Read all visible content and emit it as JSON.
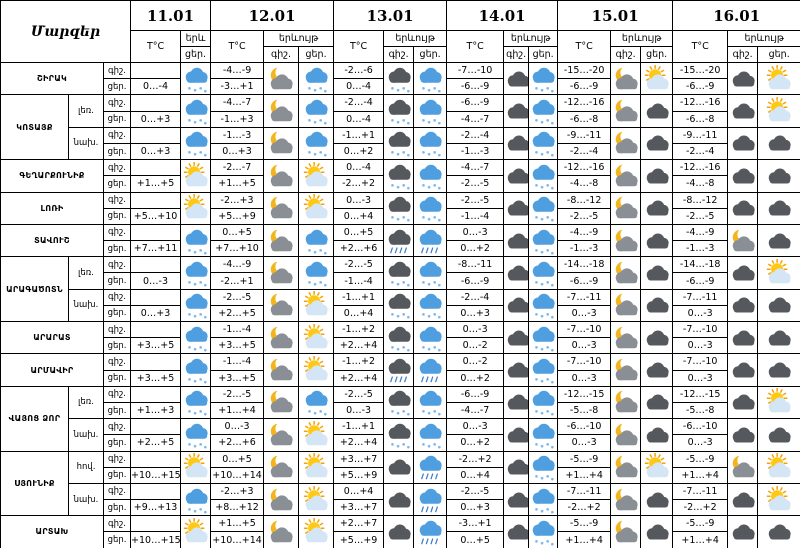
{
  "header": {
    "title": "Մարզեր",
    "temp_label": "T°C",
    "phenomenon_label": "երևույթ",
    "phenomenon_label_short": "երև",
    "night": "գիշ.",
    "day": "ցեր."
  },
  "dates": [
    "11.01",
    "12.01",
    "13.01",
    "14.01",
    "15.01",
    "16.01"
  ],
  "regions": [
    {
      "name": "ՇԻՐԱԿ",
      "rows": [
        {
          "temps": [
            [
              "0…-4"
            ],
            [
              "-4…-9",
              "-3…+1"
            ],
            [
              "-2…-6",
              "0…-4"
            ],
            [
              "-7…-10",
              "-6…-9"
            ],
            [
              "-15…-20",
              "-6…-9"
            ],
            [
              "-15…-20",
              "-6…-9"
            ]
          ]
        }
      ]
    },
    {
      "name": "ԿՈՏԱՅՔ",
      "rows": [
        {
          "zone": "լեռ.",
          "temps": [
            [
              "0…+3"
            ],
            [
              "-4…-7",
              "-1…+3"
            ],
            [
              "-2…-4",
              "0…-4"
            ],
            [
              "-6…-9",
              "-4…-7"
            ],
            [
              "-12…-16",
              "-6…-8"
            ],
            [
              "-12…-16",
              "-6…-8"
            ]
          ]
        },
        {
          "zone": "նախ.",
          "temps": [
            [
              "0…+3"
            ],
            [
              "-1…-3",
              "0…+3"
            ],
            [
              "-1…+1",
              "0…+2"
            ],
            [
              "-2…-4",
              "-1…-3"
            ],
            [
              "-9…-11",
              "-2…-4"
            ],
            [
              "-9…-11",
              "-2…-4"
            ]
          ]
        }
      ]
    },
    {
      "name": "ԳԵՂԱՐՔՈՒՆԻՔ",
      "rows": [
        {
          "temps": [
            [
              "+1…+5"
            ],
            [
              "-2…-7",
              "+1…+5"
            ],
            [
              "0…-4",
              "-2…+2"
            ],
            [
              "-4…-7",
              "-2…-5"
            ],
            [
              "-12…-16",
              "-4…-8"
            ],
            [
              "-12…-16",
              "-4…-8"
            ]
          ]
        }
      ]
    },
    {
      "name": "ԼՈՌԻ",
      "rows": [
        {
          "temps": [
            [
              "+5…+10"
            ],
            [
              "-2…+3",
              "+5…+9"
            ],
            [
              "0…-3",
              "0…+4"
            ],
            [
              "-2…-5",
              "-1…-4"
            ],
            [
              "-8…-12",
              "-2…-5"
            ],
            [
              "-8…-12",
              "-2…-5"
            ]
          ]
        }
      ]
    },
    {
      "name": "ՏԱՎՈՒՇ",
      "rows": [
        {
          "temps": [
            [
              "+7…+11"
            ],
            [
              "0…+5",
              "+7…+10"
            ],
            [
              "0…+5",
              "+2…+6"
            ],
            [
              "0…-3",
              "0…+2"
            ],
            [
              "-4…-9",
              "-1…-3"
            ],
            [
              "-4…-9",
              "-1…-3"
            ]
          ]
        }
      ]
    },
    {
      "name": "ԱՐԱԳԱԾՈՏՆ",
      "rows": [
        {
          "zone": "լեռ.",
          "temps": [
            [
              "0…-3"
            ],
            [
              "-4…-9",
              "-2…+1"
            ],
            [
              "-2…-5",
              "-1…-4"
            ],
            [
              "-8…-11",
              "-6…-9"
            ],
            [
              "-14…-18",
              "-6…-9"
            ],
            [
              "-14…-18",
              "-6…-9"
            ]
          ]
        },
        {
          "zone": "նախ.",
          "temps": [
            [
              "0…+3"
            ],
            [
              "-2…-5",
              "+2…+5"
            ],
            [
              "-1…+1",
              "0…+4"
            ],
            [
              "-2…-4",
              "0…+3"
            ],
            [
              "-7…-11",
              "0…-3"
            ],
            [
              "-7…-11",
              "0…-3"
            ]
          ]
        }
      ]
    },
    {
      "name": "ԱՐԱՐԱՏ",
      "rows": [
        {
          "temps": [
            [
              "+3…+5"
            ],
            [
              "-1…-4",
              "+3…+5"
            ],
            [
              "-1…+2",
              "+2…+4"
            ],
            [
              "0…-3",
              "0…-2"
            ],
            [
              "-7…-10",
              "0…-3"
            ],
            [
              "-7…-10",
              "0…-3"
            ]
          ]
        }
      ]
    },
    {
      "name": "ԱՐՄԱՎԻՐ",
      "rows": [
        {
          "temps": [
            [
              "+3…+5"
            ],
            [
              "-1…-4",
              "+3…+5"
            ],
            [
              "-1…+2",
              "+2…+4"
            ],
            [
              "0…-2",
              "0…+2"
            ],
            [
              "-7…-10",
              "0…-3"
            ],
            [
              "-7…-10",
              "0…-3"
            ]
          ]
        }
      ]
    },
    {
      "name": "ՎԱՅՈՑ ՁՈՐ",
      "rows": [
        {
          "zone": "լեռ.",
          "temps": [
            [
              "+1…+3"
            ],
            [
              "-2…-5",
              "+1…+4"
            ],
            [
              "-2…-5",
              "0…-3"
            ],
            [
              "-6…-9",
              "-4…-7"
            ],
            [
              "-12…-15",
              "-5…-8"
            ],
            [
              "-12…-15",
              "-5…-8"
            ]
          ]
        },
        {
          "zone": "նախ.",
          "temps": [
            [
              "+2…+5"
            ],
            [
              "0…-3",
              "+2…+6"
            ],
            [
              "-1…+1",
              "+2…+4"
            ],
            [
              "0…-3",
              "0…+2"
            ],
            [
              "-6…-10",
              "0…-3"
            ],
            [
              "-6…-10",
              "0…-3"
            ]
          ]
        }
      ]
    },
    {
      "name": "ՍՅՈՒՆԻՔ",
      "rows": [
        {
          "zone": "հով.",
          "temps": [
            [
              "+10…+15"
            ],
            [
              "0…+5",
              "+10…+14"
            ],
            [
              "+3…+7",
              "+5…+9"
            ],
            [
              "-2…+2",
              "0…+4"
            ],
            [
              "-5…-9",
              "+1…+4"
            ],
            [
              "-5…-9",
              "+1…+4"
            ]
          ]
        },
        {
          "zone": "նախ.",
          "temps": [
            [
              "+9…+13"
            ],
            [
              "-2…+3",
              "+8…+12"
            ],
            [
              "0…+4",
              "+3…+7"
            ],
            [
              "-2…-5",
              "0…+3"
            ],
            [
              "-7…-11",
              "-2…+2"
            ],
            [
              "-7…-11",
              "-2…+2"
            ]
          ]
        }
      ]
    },
    {
      "name": "ԱՐՏԱԽ",
      "rows": [
        {
          "temps": [
            [
              "+10…+15"
            ],
            [
              "+1…+5",
              "+10…+14"
            ],
            [
              "+2…+7",
              "+5…+9"
            ],
            [
              "-3…+1",
              "0…+5"
            ],
            [
              "-5…-9",
              "+1…+4"
            ],
            [
              "-5…-9",
              "+1…+4"
            ]
          ]
        }
      ]
    }
  ]
}
